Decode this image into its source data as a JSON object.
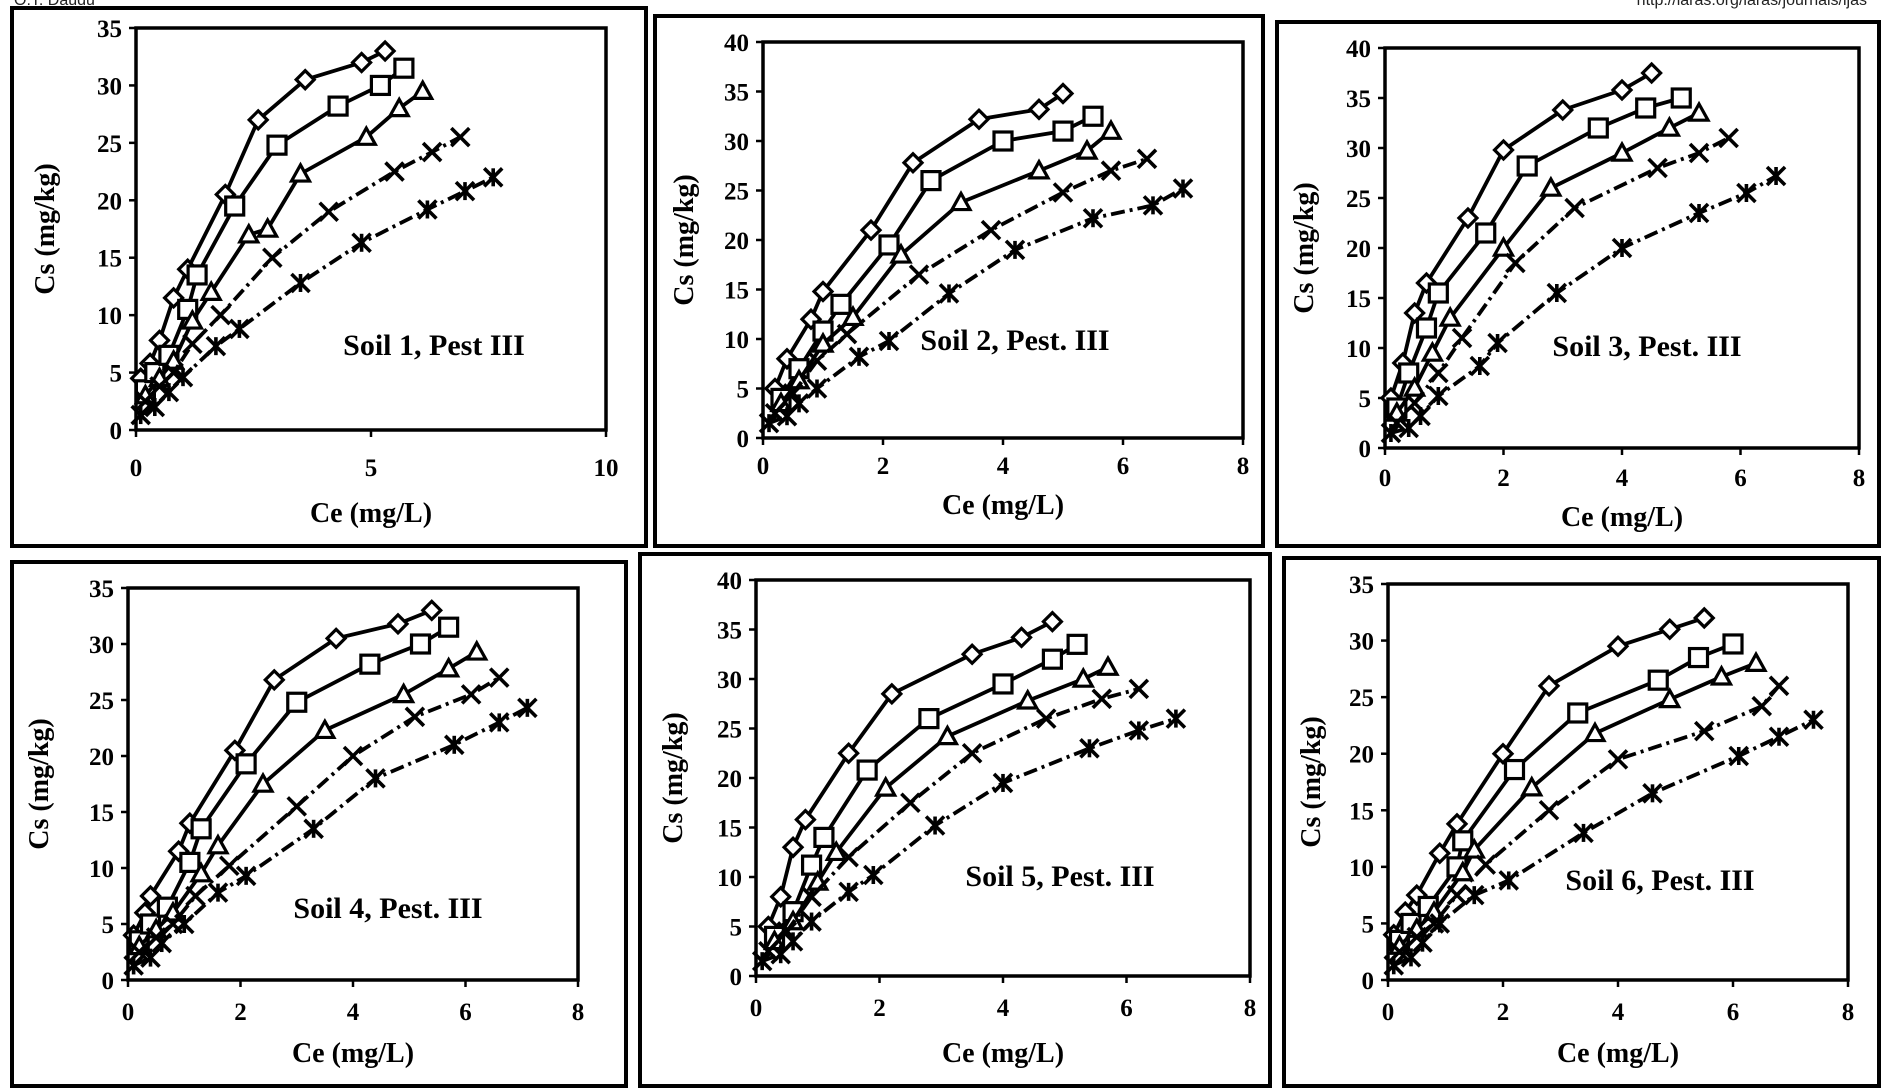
{
  "header": {
    "left": "O.T. Daudu",
    "right": "http://iaras.org/iaras/journals/ijas"
  },
  "chart_data": [
    {
      "type": "line",
      "title": "Soil 1, Pest III",
      "xlabel": "Ce (mg/L)",
      "ylabel": "Cs (mg/kg)",
      "xlim": [
        0,
        10
      ],
      "ylim": [
        0,
        35
      ],
      "xticks": [
        0,
        5,
        10
      ],
      "yticks": [
        0,
        5,
        10,
        15,
        20,
        25,
        30,
        35
      ],
      "series": [
        {
          "marker": "diamond",
          "x": [
            0.1,
            0.3,
            0.5,
            0.8,
            1.1,
            1.9,
            2.6,
            3.6,
            4.8,
            5.3
          ],
          "y": [
            4.5,
            5.8,
            7.8,
            11.5,
            14.0,
            20.5,
            27.0,
            30.5,
            32.0,
            33.0
          ]
        },
        {
          "marker": "square",
          "x": [
            0.2,
            0.4,
            0.7,
            1.1,
            1.3,
            2.1,
            3.0,
            4.3,
            5.2,
            5.7
          ],
          "y": [
            3.5,
            5.0,
            6.5,
            10.5,
            13.5,
            19.5,
            24.8,
            28.2,
            30.0,
            31.5
          ]
        },
        {
          "marker": "triangle",
          "x": [
            0.2,
            0.5,
            0.8,
            1.2,
            1.6,
            2.4,
            2.8,
            3.5,
            4.9,
            5.6,
            6.1
          ],
          "y": [
            3.0,
            4.5,
            6.0,
            9.5,
            12.0,
            17.0,
            17.5,
            22.3,
            25.5,
            28.0,
            29.5
          ]
        },
        {
          "marker": "x",
          "x": [
            0.2,
            0.5,
            0.8,
            1.2,
            1.8,
            2.9,
            4.1,
            5.5,
            6.3,
            6.9
          ],
          "y": [
            2.5,
            3.8,
            5.0,
            7.5,
            10.0,
            15.0,
            19.0,
            22.5,
            24.2,
            25.5
          ]
        },
        {
          "marker": "asterisk",
          "x": [
            0.1,
            0.4,
            0.7,
            1.0,
            1.7,
            2.2,
            3.5,
            4.8,
            6.2,
            7.0,
            7.6
          ],
          "y": [
            1.3,
            2.0,
            3.3,
            4.6,
            7.3,
            8.8,
            12.8,
            16.3,
            19.2,
            20.8,
            22.0
          ]
        }
      ]
    },
    {
      "type": "line",
      "title": "Soil 2, Pest. III",
      "xlabel": "Ce (mg/L)",
      "ylabel": "Cs (mg/kg)",
      "xlim": [
        0,
        8
      ],
      "ylim": [
        0,
        40
      ],
      "xticks": [
        0,
        2,
        4,
        6,
        8
      ],
      "yticks": [
        0,
        5,
        10,
        15,
        20,
        25,
        30,
        35,
        40
      ],
      "series": [
        {
          "marker": "diamond",
          "x": [
            0.2,
            0.4,
            0.8,
            1.0,
            1.8,
            2.5,
            3.6,
            4.6,
            5.0
          ],
          "y": [
            5.0,
            8.0,
            12.0,
            14.8,
            21.0,
            27.8,
            32.2,
            33.2,
            34.8
          ]
        },
        {
          "marker": "square",
          "x": [
            0.3,
            0.6,
            1.0,
            1.3,
            2.1,
            2.8,
            4.0,
            5.0,
            5.5
          ],
          "y": [
            4.0,
            7.0,
            10.8,
            13.5,
            19.5,
            26.0,
            30.0,
            31.0,
            32.5
          ]
        },
        {
          "marker": "triangle",
          "x": [
            0.3,
            0.6,
            1.0,
            1.5,
            2.3,
            3.3,
            4.6,
            5.4,
            5.8
          ],
          "y": [
            3.5,
            5.8,
            9.5,
            12.2,
            18.5,
            23.8,
            27.0,
            29.0,
            31.0
          ]
        },
        {
          "marker": "x",
          "x": [
            0.2,
            0.5,
            0.9,
            1.4,
            2.6,
            3.8,
            5.0,
            5.8,
            6.4
          ],
          "y": [
            2.5,
            4.5,
            7.8,
            10.5,
            16.5,
            21.0,
            24.8,
            27.0,
            28.2
          ]
        },
        {
          "marker": "asterisk",
          "x": [
            0.1,
            0.4,
            0.6,
            0.9,
            1.6,
            2.1,
            3.1,
            4.2,
            5.5,
            6.5,
            7.0
          ],
          "y": [
            1.5,
            2.2,
            3.5,
            5.0,
            8.2,
            9.8,
            14.6,
            19.0,
            22.2,
            23.5,
            25.2
          ]
        }
      ]
    },
    {
      "type": "line",
      "title": "Soil 3, Pest. III",
      "xlabel": "Ce (mg/L)",
      "ylabel": "Cs (mg/kg)",
      "xlim": [
        0,
        8
      ],
      "ylim": [
        0,
        40
      ],
      "xticks": [
        0,
        2,
        4,
        6,
        8
      ],
      "yticks": [
        0,
        5,
        10,
        15,
        20,
        25,
        30,
        35,
        40
      ],
      "series": [
        {
          "marker": "diamond",
          "x": [
            0.1,
            0.3,
            0.5,
            0.7,
            1.4,
            2.0,
            3.0,
            4.0,
            4.5
          ],
          "y": [
            5.0,
            8.5,
            13.5,
            16.5,
            23.0,
            29.8,
            33.8,
            35.8,
            37.5
          ]
        },
        {
          "marker": "square",
          "x": [
            0.2,
            0.4,
            0.7,
            0.9,
            1.7,
            2.4,
            3.6,
            4.4,
            5.0
          ],
          "y": [
            4.0,
            7.5,
            12.0,
            15.5,
            21.5,
            28.2,
            32.0,
            34.0,
            35.0
          ]
        },
        {
          "marker": "triangle",
          "x": [
            0.2,
            0.5,
            0.8,
            1.1,
            2.0,
            2.8,
            4.0,
            4.8,
            5.3
          ],
          "y": [
            3.5,
            6.0,
            9.5,
            13.0,
            20.0,
            26.0,
            29.5,
            32.0,
            33.5
          ]
        },
        {
          "marker": "x",
          "x": [
            0.2,
            0.5,
            0.9,
            1.3,
            2.2,
            3.2,
            4.6,
            5.3,
            5.8
          ],
          "y": [
            2.5,
            4.5,
            7.5,
            11.0,
            18.5,
            24.0,
            28.0,
            29.5,
            31.0
          ]
        },
        {
          "marker": "asterisk",
          "x": [
            0.1,
            0.4,
            0.6,
            0.9,
            1.6,
            1.9,
            2.9,
            4.0,
            5.3,
            6.1,
            6.6
          ],
          "y": [
            1.5,
            2.0,
            3.2,
            5.2,
            8.2,
            10.5,
            15.5,
            20.0,
            23.5,
            25.5,
            27.2
          ]
        }
      ]
    },
    {
      "type": "line",
      "title": "Soil 4, Pest. III",
      "xlabel": "Ce (mg/L)",
      "ylabel": "Cs (mg/kg)",
      "xlim": [
        0,
        8
      ],
      "ylim": [
        0,
        35
      ],
      "xticks": [
        0,
        2,
        4,
        6,
        8
      ],
      "yticks": [
        0,
        5,
        10,
        15,
        20,
        25,
        30,
        35
      ],
      "series": [
        {
          "marker": "diamond",
          "x": [
            0.1,
            0.3,
            0.4,
            0.9,
            1.1,
            1.9,
            2.6,
            3.7,
            4.8,
            5.4
          ],
          "y": [
            4.0,
            6.0,
            7.5,
            11.5,
            14.0,
            20.5,
            26.8,
            30.5,
            31.8,
            33.0
          ]
        },
        {
          "marker": "square",
          "x": [
            0.2,
            0.4,
            0.7,
            1.1,
            1.3,
            2.1,
            3.0,
            4.3,
            5.2,
            5.7
          ],
          "y": [
            3.5,
            5.0,
            6.5,
            10.5,
            13.5,
            19.3,
            24.8,
            28.2,
            30.0,
            31.5
          ]
        },
        {
          "marker": "triangle",
          "x": [
            0.2,
            0.5,
            0.8,
            1.3,
            1.6,
            2.4,
            3.5,
            4.9,
            5.7,
            6.2
          ],
          "y": [
            3.0,
            4.5,
            6.0,
            9.5,
            12.0,
            17.5,
            22.3,
            25.5,
            27.8,
            29.3
          ]
        },
        {
          "marker": "x",
          "x": [
            0.2,
            0.5,
            0.8,
            1.2,
            1.8,
            3.0,
            4.0,
            5.1,
            6.1,
            6.6
          ],
          "y": [
            2.5,
            3.8,
            5.0,
            7.5,
            10.2,
            15.5,
            20.0,
            23.5,
            25.5,
            27.0
          ]
        },
        {
          "marker": "asterisk",
          "x": [
            0.1,
            0.4,
            0.6,
            1.0,
            1.6,
            2.1,
            3.3,
            4.4,
            5.8,
            6.6,
            7.1
          ],
          "y": [
            1.3,
            2.0,
            3.3,
            5.0,
            7.8,
            9.3,
            13.5,
            18.0,
            21.0,
            23.0,
            24.3
          ]
        }
      ]
    },
    {
      "type": "line",
      "title": "Soil 5, Pest. III",
      "xlabel": "Ce (mg/L)",
      "ylabel": "Cs (mg/kg)",
      "xlim": [
        0,
        8
      ],
      "ylim": [
        0,
        40
      ],
      "xticks": [
        0,
        2,
        4,
        6,
        8
      ],
      "yticks": [
        0,
        5,
        10,
        15,
        20,
        25,
        30,
        35,
        40
      ],
      "series": [
        {
          "marker": "diamond",
          "x": [
            0.2,
            0.4,
            0.6,
            0.8,
            1.5,
            2.2,
            3.5,
            4.3,
            4.8
          ],
          "y": [
            5.0,
            8.0,
            13.0,
            15.8,
            22.5,
            28.5,
            32.5,
            34.2,
            35.8
          ]
        },
        {
          "marker": "square",
          "x": [
            0.3,
            0.6,
            0.9,
            1.1,
            1.8,
            2.8,
            4.0,
            4.8,
            5.2
          ],
          "y": [
            4.0,
            6.5,
            11.2,
            14.0,
            20.8,
            26.0,
            29.5,
            32.0,
            33.5
          ]
        },
        {
          "marker": "triangle",
          "x": [
            0.3,
            0.6,
            1.0,
            1.3,
            2.1,
            3.1,
            4.4,
            5.3,
            5.7
          ],
          "y": [
            3.5,
            5.5,
            9.5,
            12.5,
            19.0,
            24.2,
            27.8,
            30.0,
            31.2
          ]
        },
        {
          "marker": "x",
          "x": [
            0.2,
            0.5,
            0.9,
            1.5,
            2.5,
            3.5,
            4.7,
            5.6,
            6.2
          ],
          "y": [
            2.5,
            4.5,
            8.0,
            12.0,
            17.5,
            22.5,
            26.0,
            28.0,
            29.0
          ]
        },
        {
          "marker": "asterisk",
          "x": [
            0.1,
            0.4,
            0.6,
            0.9,
            1.5,
            1.9,
            2.9,
            4.0,
            5.4,
            6.2,
            6.8
          ],
          "y": [
            1.5,
            2.2,
            3.5,
            5.5,
            8.5,
            10.2,
            15.2,
            19.5,
            23.0,
            24.8,
            26.0
          ]
        }
      ]
    },
    {
      "type": "line",
      "title": "Soil 6, Pest. III",
      "xlabel": "Ce (mg/L)",
      "ylabel": "Cs (mg/kg)",
      "xlim": [
        0,
        8
      ],
      "ylim": [
        0,
        35
      ],
      "xticks": [
        0,
        2,
        4,
        6,
        8
      ],
      "yticks": [
        0,
        5,
        10,
        15,
        20,
        25,
        30,
        35
      ],
      "series": [
        {
          "marker": "diamond",
          "x": [
            0.1,
            0.3,
            0.5,
            0.9,
            1.2,
            2.0,
            2.8,
            4.0,
            4.9,
            5.5
          ],
          "y": [
            4.0,
            6.0,
            7.5,
            11.2,
            13.8,
            20.0,
            26.0,
            29.5,
            31.0,
            32.0
          ]
        },
        {
          "marker": "square",
          "x": [
            0.2,
            0.4,
            0.7,
            1.2,
            1.3,
            2.2,
            3.3,
            4.7,
            5.4,
            6.0
          ],
          "y": [
            3.5,
            5.0,
            6.5,
            10.0,
            12.3,
            18.6,
            23.6,
            26.5,
            28.5,
            29.7
          ]
        },
        {
          "marker": "triangle",
          "x": [
            0.2,
            0.5,
            0.8,
            1.3,
            1.5,
            2.5,
            3.6,
            4.9,
            5.8,
            6.4
          ],
          "y": [
            3.0,
            4.5,
            6.0,
            9.5,
            11.5,
            17.0,
            21.8,
            24.8,
            26.8,
            28.0
          ]
        },
        {
          "marker": "x",
          "x": [
            0.2,
            0.5,
            0.8,
            1.2,
            1.7,
            2.8,
            4.0,
            5.5,
            6.5,
            6.8
          ],
          "y": [
            2.5,
            3.8,
            5.0,
            7.5,
            10.2,
            15.0,
            19.5,
            22.0,
            24.2,
            26.0
          ]
        },
        {
          "marker": "asterisk",
          "x": [
            0.1,
            0.4,
            0.6,
            0.9,
            1.5,
            2.1,
            3.4,
            4.6,
            6.1,
            6.8,
            7.4
          ],
          "y": [
            1.3,
            2.0,
            3.3,
            5.0,
            7.5,
            8.8,
            13.0,
            16.5,
            19.8,
            21.5,
            23.0
          ]
        }
      ]
    }
  ]
}
